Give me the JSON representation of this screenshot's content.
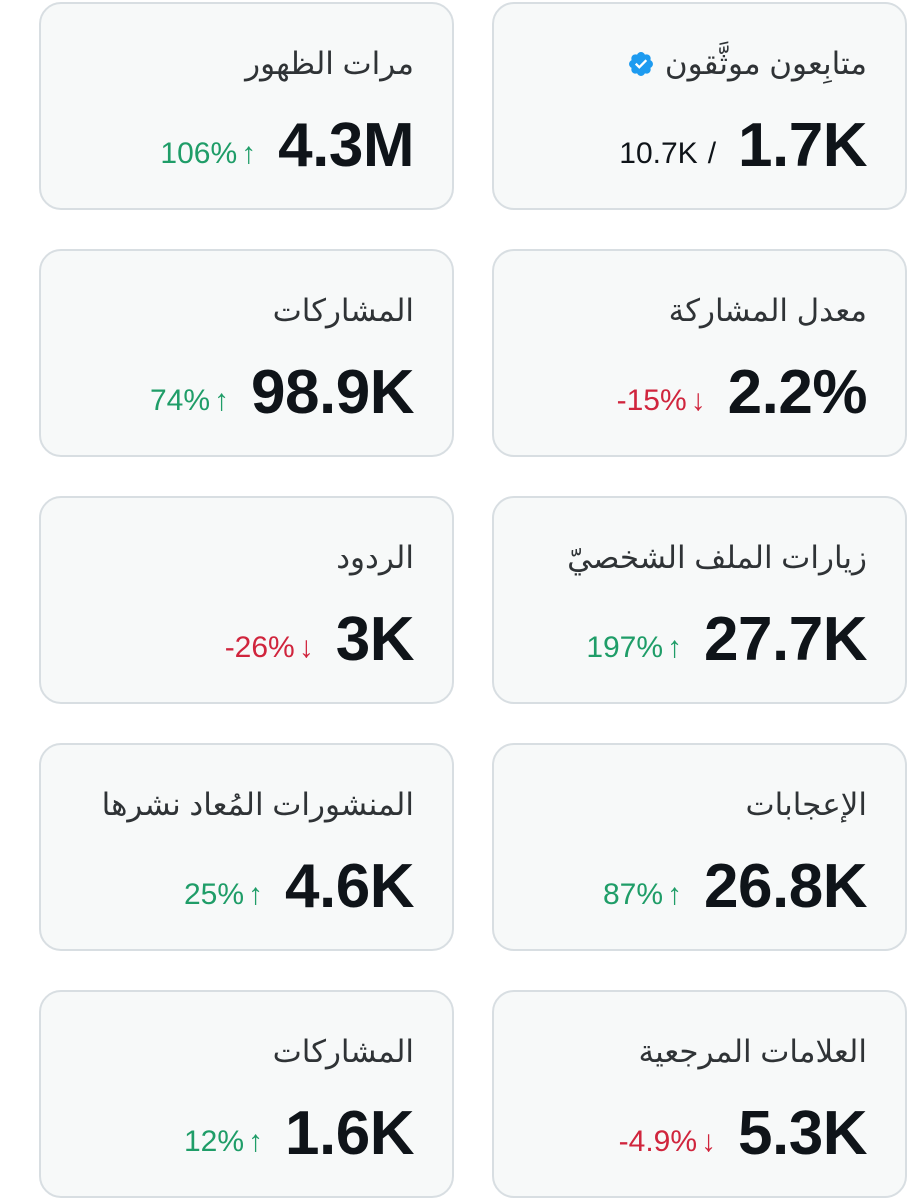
{
  "cards": [
    {
      "title": "متابِعون موثَّقون",
      "value": "1.7K",
      "secondary": "10.7K",
      "separator": "/",
      "verified_color": "#1d9bf0"
    },
    {
      "title": "مرات الظهور",
      "value": "4.3M",
      "change": "106%",
      "arrow": "↑",
      "trend": "up"
    },
    {
      "title": "معدل المشاركة",
      "value": "2.2%",
      "change": "-15%",
      "arrow": "↓",
      "trend": "down"
    },
    {
      "title": "المشاركات",
      "value": "98.9K",
      "change": "74%",
      "arrow": "↑",
      "trend": "up"
    },
    {
      "title": "زيارات الملف الشخصيّ",
      "value": "27.7K",
      "change": "197%",
      "arrow": "↑",
      "trend": "up"
    },
    {
      "title": "الردود",
      "value": "3K",
      "change": "-26%",
      "arrow": "↓",
      "trend": "down"
    },
    {
      "title": "الإعجابات",
      "value": "26.8K",
      "change": "87%",
      "arrow": "↑",
      "trend": "up"
    },
    {
      "title": "المنشورات المُعاد نشرها",
      "value": "4.6K",
      "change": "25%",
      "arrow": "↑",
      "trend": "up"
    },
    {
      "title": "العلامات المرجعية",
      "value": "5.3K",
      "change": "-4.9%",
      "arrow": "↓",
      "trend": "down"
    },
    {
      "title": "المشاركات",
      "value": "1.6K",
      "change": "12%",
      "arrow": "↑",
      "trend": "up"
    }
  ],
  "colors": {
    "up": "#1f9d68",
    "down": "#d0253d",
    "card_bg": "#f7f9f9",
    "card_border": "#d8dee2"
  }
}
